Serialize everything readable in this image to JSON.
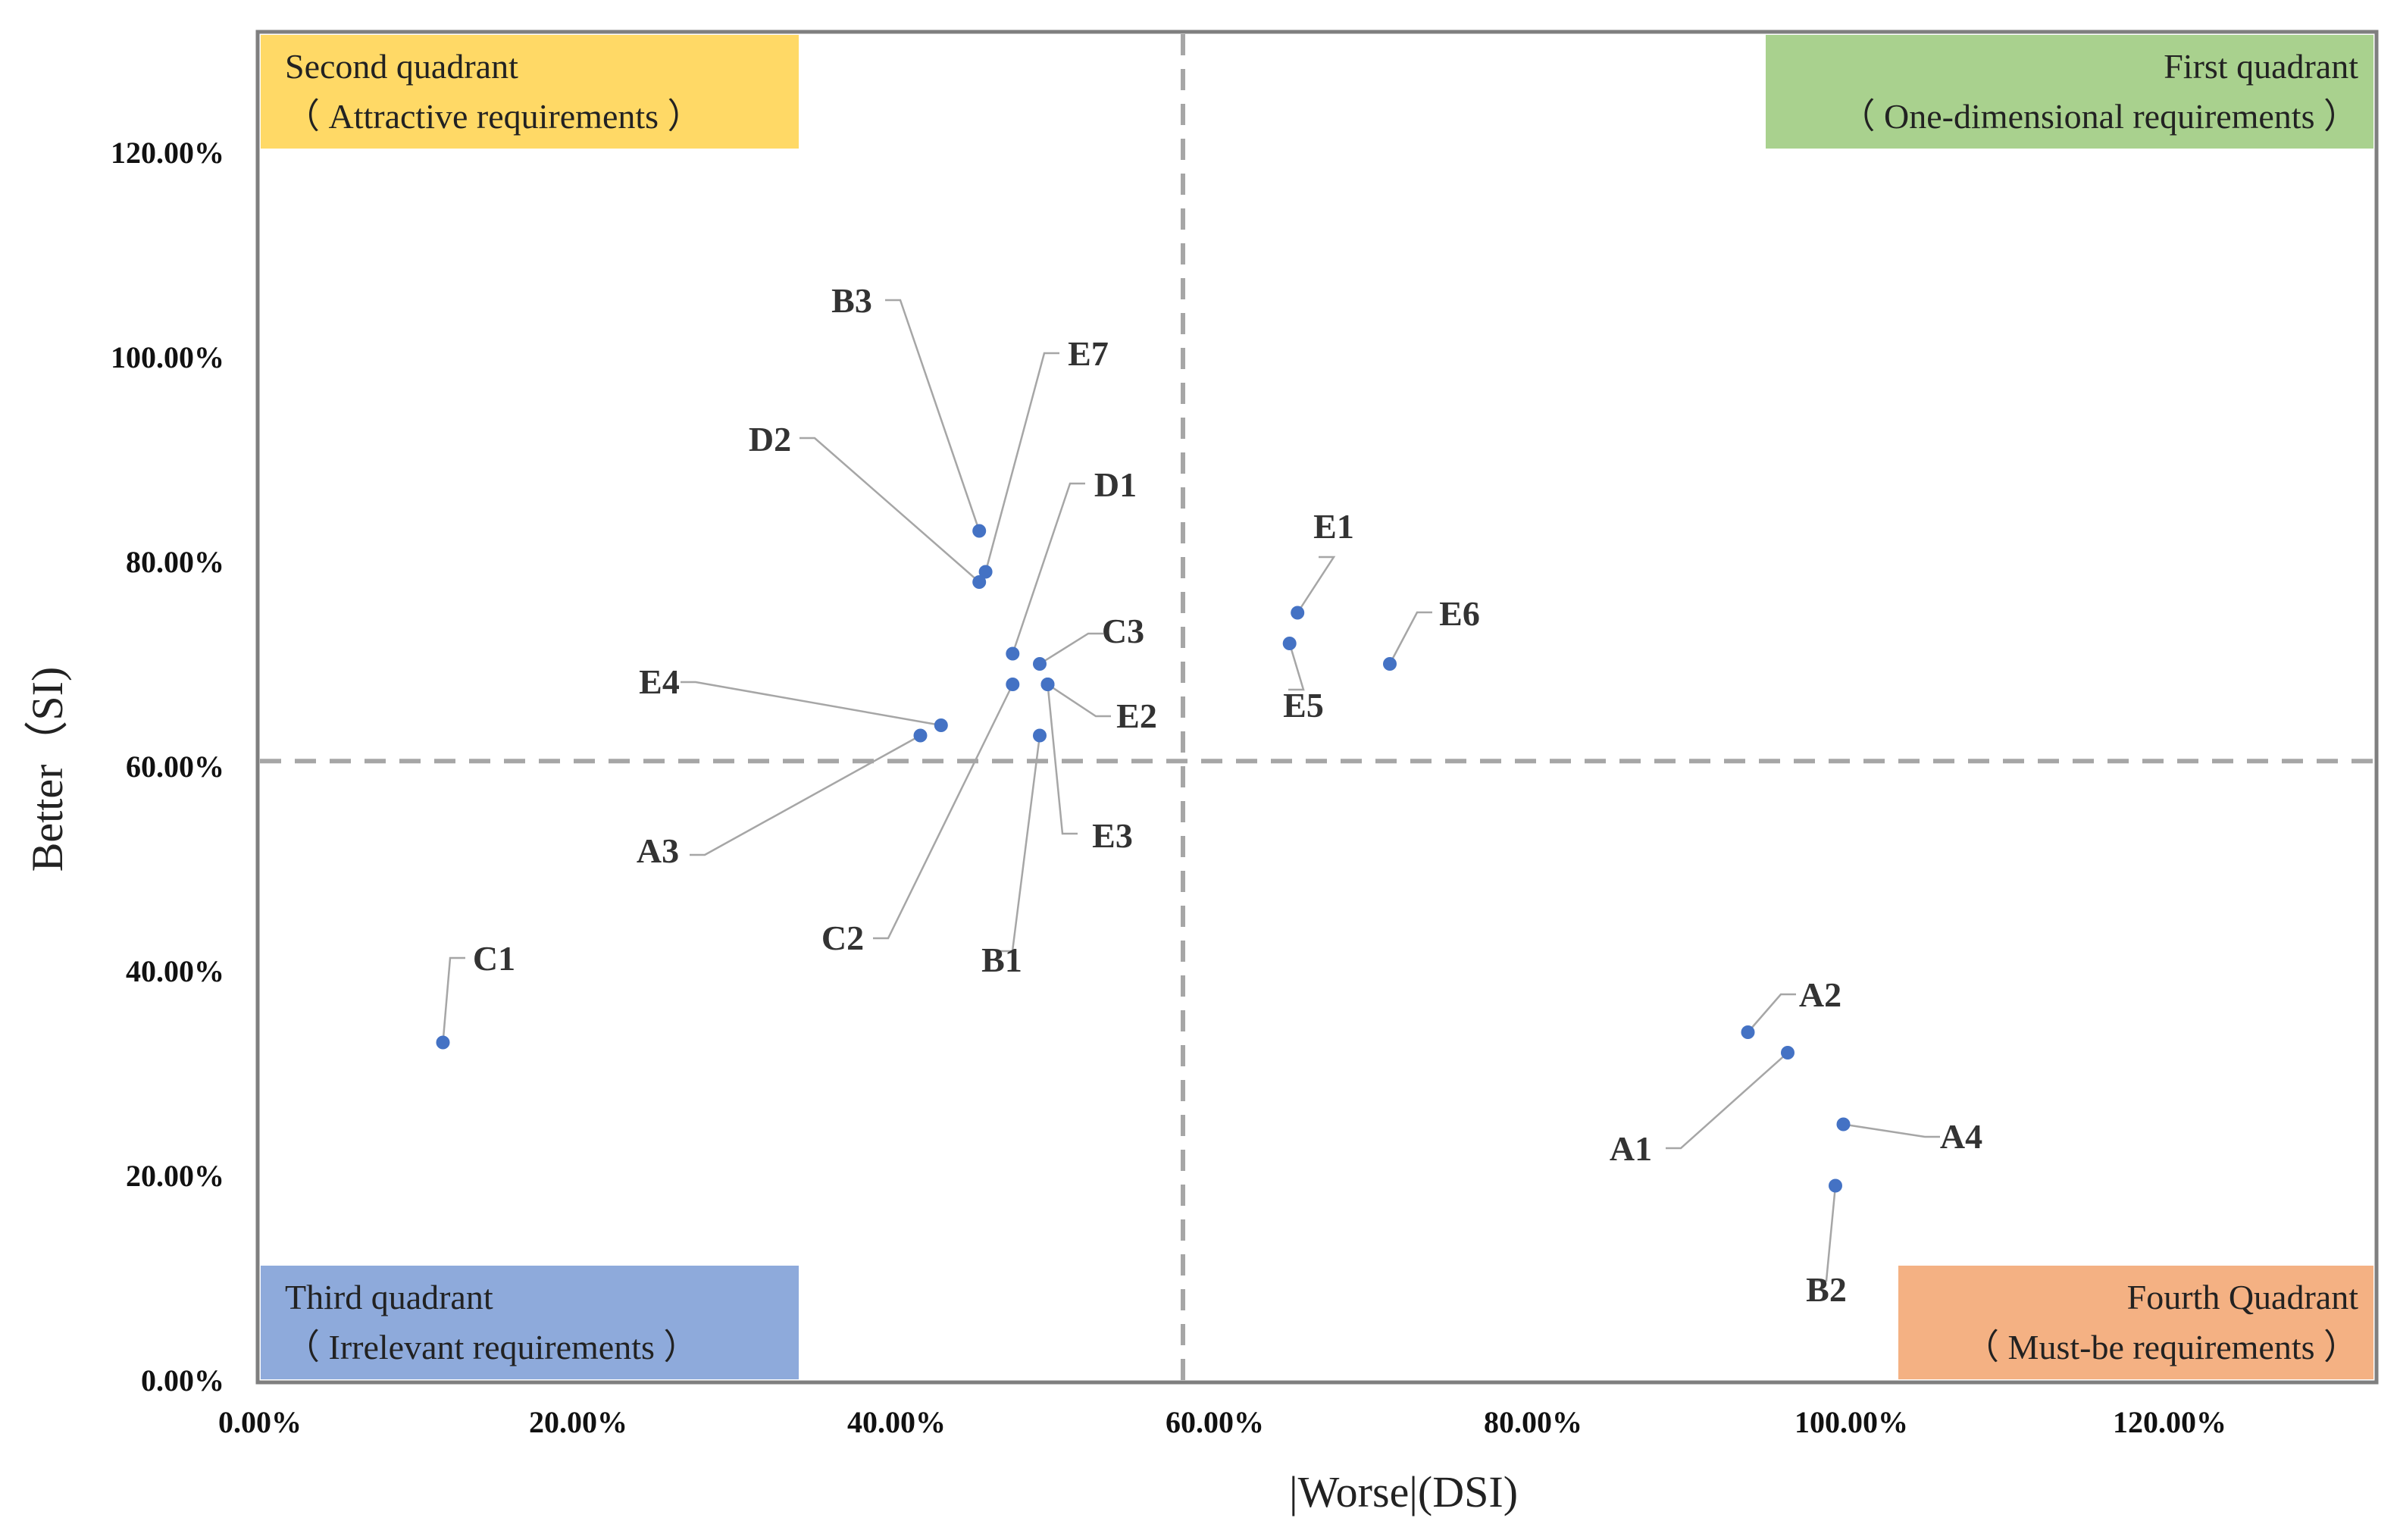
{
  "chart_data": {
    "type": "scatter",
    "xlabel": "|Worse|(DSI)",
    "ylabel": "Better（SI)",
    "xlim": [
      0,
      1.34
    ],
    "ylim": [
      0,
      1.32
    ],
    "xticks": [
      "0.00%",
      "20.00%",
      "40.00%",
      "60.00%",
      "80.00%",
      "100.00%",
      "120.00%"
    ],
    "xtick_values": [
      0,
      0.2,
      0.4,
      0.6,
      0.8,
      1.0,
      1.2
    ],
    "yticks": [
      "0.00%",
      "20.00%",
      "40.00%",
      "60.00%",
      "80.00%",
      "100.00%",
      "120.00%"
    ],
    "ytick_values": [
      0,
      0.2,
      0.4,
      0.6,
      0.8,
      1.0,
      1.2
    ],
    "threshold_x": 0.58,
    "threshold_y": 0.605,
    "point_color": "#4472c4",
    "quadrants": [
      {
        "id": "q2",
        "corner": "top-left",
        "color": "#ffd966",
        "line1": "Second quadrant",
        "line2": "（ Attractive  requirements ）"
      },
      {
        "id": "q1",
        "corner": "top-right",
        "color": "#a9d18e",
        "line1": "First quadrant",
        "line2": "（ One-dimensional requirements ）"
      },
      {
        "id": "q3",
        "corner": "bottom-left",
        "color": "#8eaadb",
        "line1": "Third quadrant",
        "line2": "（ Irrelevant  requirements ）"
      },
      {
        "id": "q4",
        "corner": "bottom-right",
        "color": "#f4b183",
        "line1": "Fourth Quadrant",
        "line2": "（ Must-be requirements ）"
      }
    ],
    "points": [
      {
        "label": "A1",
        "x": 0.96,
        "y": 0.32
      },
      {
        "label": "A2",
        "x": 0.935,
        "y": 0.34
      },
      {
        "label": "A3",
        "x": 0.415,
        "y": 0.63
      },
      {
        "label": "A4",
        "x": 0.995,
        "y": 0.25
      },
      {
        "label": "B1",
        "x": 0.49,
        "y": 0.63
      },
      {
        "label": "B2",
        "x": 0.99,
        "y": 0.19
      },
      {
        "label": "B3",
        "x": 0.452,
        "y": 0.83
      },
      {
        "label": "C1",
        "x": 0.115,
        "y": 0.33
      },
      {
        "label": "C2",
        "x": 0.473,
        "y": 0.68
      },
      {
        "label": "C3",
        "x": 0.49,
        "y": 0.7
      },
      {
        "label": "D1",
        "x": 0.473,
        "y": 0.71
      },
      {
        "label": "D2",
        "x": 0.452,
        "y": 0.78
      },
      {
        "label": "E1",
        "x": 0.652,
        "y": 0.75
      },
      {
        "label": "E2",
        "x": 0.495,
        "y": 0.68
      },
      {
        "label": "E3",
        "x": 0.495,
        "y": 0.68
      },
      {
        "label": "E4",
        "x": 0.428,
        "y": 0.64
      },
      {
        "label": "E5",
        "x": 0.647,
        "y": 0.72
      },
      {
        "label": "E6",
        "x": 0.71,
        "y": 0.7
      },
      {
        "label": "E7",
        "x": 0.456,
        "y": 0.79
      }
    ]
  }
}
